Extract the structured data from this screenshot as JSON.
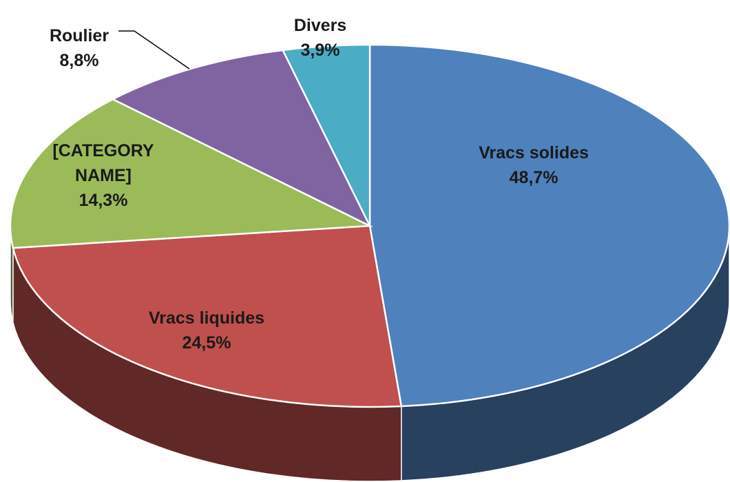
{
  "chart_data": {
    "type": "pie",
    "categories": [
      "Vracs solides",
      "Vracs liquides",
      "[CATEGORY NAME]",
      "Roulier",
      "Divers"
    ],
    "values": [
      48.7,
      24.5,
      14.3,
      8.8,
      3.9
    ],
    "value_labels": [
      "48,7%",
      "24,5%",
      "14,3%",
      "8,8%",
      "3,9%"
    ],
    "colors": [
      "#4f81bd",
      "#c0504d",
      "#9bbb59",
      "#8064a2",
      "#4bacc6"
    ]
  }
}
